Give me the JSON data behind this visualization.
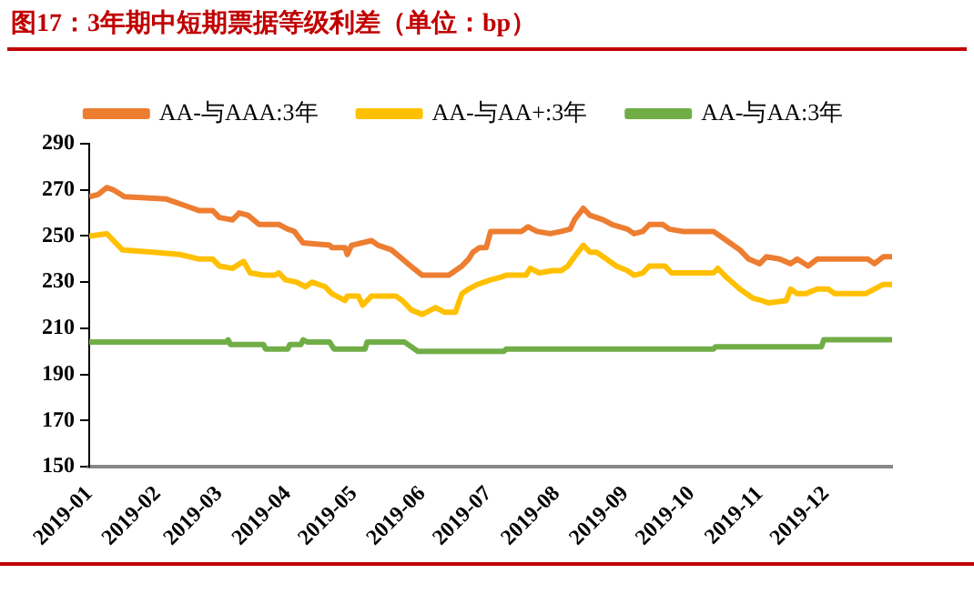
{
  "chart_data": {
    "type": "line",
    "title": "图17：3年期中短期票据等级利差（单位：bp）",
    "xlim": [
      "2019-01-01",
      "2019-12-31"
    ],
    "xticks": [
      "2019-01",
      "2019-02",
      "2019-03",
      "2019-04",
      "2019-05",
      "2019-06",
      "2019-07",
      "2019-08",
      "2019-09",
      "2019-10",
      "2019-11",
      "2019-12"
    ],
    "ylim": [
      150,
      290
    ],
    "yticks": [
      150,
      170,
      190,
      210,
      230,
      250,
      270,
      290
    ],
    "grid": false,
    "legend": "top",
    "marker": "none",
    "line_style": "solid",
    "series": [
      {
        "name": "AA-与AAA:3年",
        "color": "#ed7d31",
        "x": [
          "2019-01-01",
          "2019-01-05",
          "2019-01-09",
          "2019-01-12",
          "2019-01-17",
          "2019-02-05",
          "2019-02-14",
          "2019-02-20",
          "2019-02-26",
          "2019-03-01",
          "2019-03-07",
          "2019-03-10",
          "2019-03-14",
          "2019-03-19",
          "2019-03-28",
          "2019-04-01",
          "2019-04-04",
          "2019-04-08",
          "2019-04-20",
          "2019-04-21",
          "2019-04-27",
          "2019-04-28",
          "2019-04-30",
          "2019-05-09",
          "2019-05-12",
          "2019-05-18",
          "2019-05-23",
          "2019-05-28",
          "2019-06-01",
          "2019-06-13",
          "2019-06-16",
          "2019-06-19",
          "2019-06-22",
          "2019-06-24",
          "2019-06-27",
          "2019-06-30",
          "2019-07-02",
          "2019-07-16",
          "2019-07-19",
          "2019-07-23",
          "2019-07-29",
          "2019-08-03",
          "2019-08-07",
          "2019-08-09",
          "2019-08-13",
          "2019-08-16",
          "2019-08-22",
          "2019-08-26",
          "2019-09-02",
          "2019-09-05",
          "2019-09-09",
          "2019-09-12",
          "2019-09-18",
          "2019-09-21",
          "2019-09-27",
          "2019-10-11",
          "2019-10-17",
          "2019-10-23",
          "2019-10-27",
          "2019-11-01",
          "2019-11-04",
          "2019-11-10",
          "2019-11-15",
          "2019-11-18",
          "2019-11-23",
          "2019-11-27",
          "2019-12-20",
          "2019-12-23",
          "2019-12-27",
          "2019-12-31"
        ],
        "values": [
          267,
          268,
          271,
          270,
          267,
          266,
          263,
          261,
          261,
          258,
          257,
          260,
          259,
          255,
          255,
          253,
          252,
          247,
          246,
          245,
          245,
          242,
          246,
          248,
          246,
          244,
          240,
          236,
          233,
          233,
          235,
          237,
          240,
          243,
          245,
          245,
          252,
          252,
          254,
          252,
          251,
          252,
          253,
          257,
          262,
          259,
          257,
          255,
          253,
          251,
          252,
          255,
          255,
          253,
          252,
          252,
          248,
          244,
          240,
          238,
          241,
          240,
          238,
          240,
          237,
          240,
          240,
          238,
          241,
          241
        ]
      },
      {
        "name": "AA-与AA+:3年",
        "color": "#ffc000",
        "x": [
          "2019-01-01",
          "2019-01-09",
          "2019-01-12",
          "2019-01-16",
          "2019-01-30",
          "2019-02-11",
          "2019-02-20",
          "2019-02-26",
          "2019-03-01",
          "2019-03-07",
          "2019-03-12",
          "2019-03-15",
          "2019-03-21",
          "2019-03-26",
          "2019-03-28",
          "2019-03-31",
          "2019-04-05",
          "2019-04-09",
          "2019-04-12",
          "2019-04-18",
          "2019-04-21",
          "2019-04-27",
          "2019-04-28",
          "2019-05-03",
          "2019-05-05",
          "2019-05-09",
          "2019-05-20",
          "2019-05-23",
          "2019-05-27",
          "2019-06-01",
          "2019-06-07",
          "2019-06-11",
          "2019-06-16",
          "2019-06-19",
          "2019-06-22",
          "2019-06-26",
          "2019-07-02",
          "2019-07-06",
          "2019-07-09",
          "2019-07-18",
          "2019-07-20",
          "2019-07-24",
          "2019-07-30",
          "2019-08-03",
          "2019-08-06",
          "2019-08-09",
          "2019-08-13",
          "2019-08-16",
          "2019-08-19",
          "2019-08-22",
          "2019-08-28",
          "2019-09-02",
          "2019-09-05",
          "2019-09-09",
          "2019-09-12",
          "2019-09-19",
          "2019-09-22",
          "2019-10-11",
          "2019-10-13",
          "2019-10-17",
          "2019-10-23",
          "2019-10-29",
          "2019-11-02",
          "2019-11-05",
          "2019-11-13",
          "2019-11-15",
          "2019-11-18",
          "2019-11-22",
          "2019-11-27",
          "2019-12-02",
          "2019-12-05",
          "2019-12-19",
          "2019-12-27",
          "2019-12-31"
        ],
        "values": [
          250,
          251,
          248,
          244,
          243,
          242,
          240,
          240,
          237,
          236,
          239,
          234,
          233,
          233,
          234,
          231,
          230,
          228,
          230,
          228,
          225,
          222,
          224,
          224,
          220,
          224,
          224,
          222,
          218,
          216,
          219,
          217,
          217,
          225,
          227,
          229,
          231,
          232,
          233,
          233,
          236,
          234,
          235,
          235,
          237,
          241,
          246,
          243,
          243,
          241,
          237,
          235,
          233,
          234,
          237,
          237,
          234,
          234,
          236,
          232,
          227,
          223,
          222,
          221,
          222,
          227,
          225,
          225,
          227,
          227,
          225,
          225,
          229,
          229
        ]
      },
      {
        "name": "AA-与AA:3年",
        "color": "#70ad47",
        "x": [
          "2019-01-01",
          "2019-03-04",
          "2019-03-05",
          "2019-03-06",
          "2019-03-21",
          "2019-03-22",
          "2019-04-01",
          "2019-04-02",
          "2019-04-07",
          "2019-04-08",
          "2019-04-10",
          "2019-04-20",
          "2019-04-22",
          "2019-05-06",
          "2019-05-07",
          "2019-05-24",
          "2019-05-30",
          "2019-07-08",
          "2019-07-09",
          "2019-10-11",
          "2019-10-12",
          "2019-11-29",
          "2019-11-30",
          "2019-12-31"
        ],
        "values": [
          204,
          204,
          205,
          203,
          203,
          201,
          201,
          203,
          203,
          205,
          204,
          204,
          201,
          201,
          204,
          204,
          200,
          200,
          201,
          201,
          202,
          202,
          205,
          205
        ]
      }
    ]
  }
}
